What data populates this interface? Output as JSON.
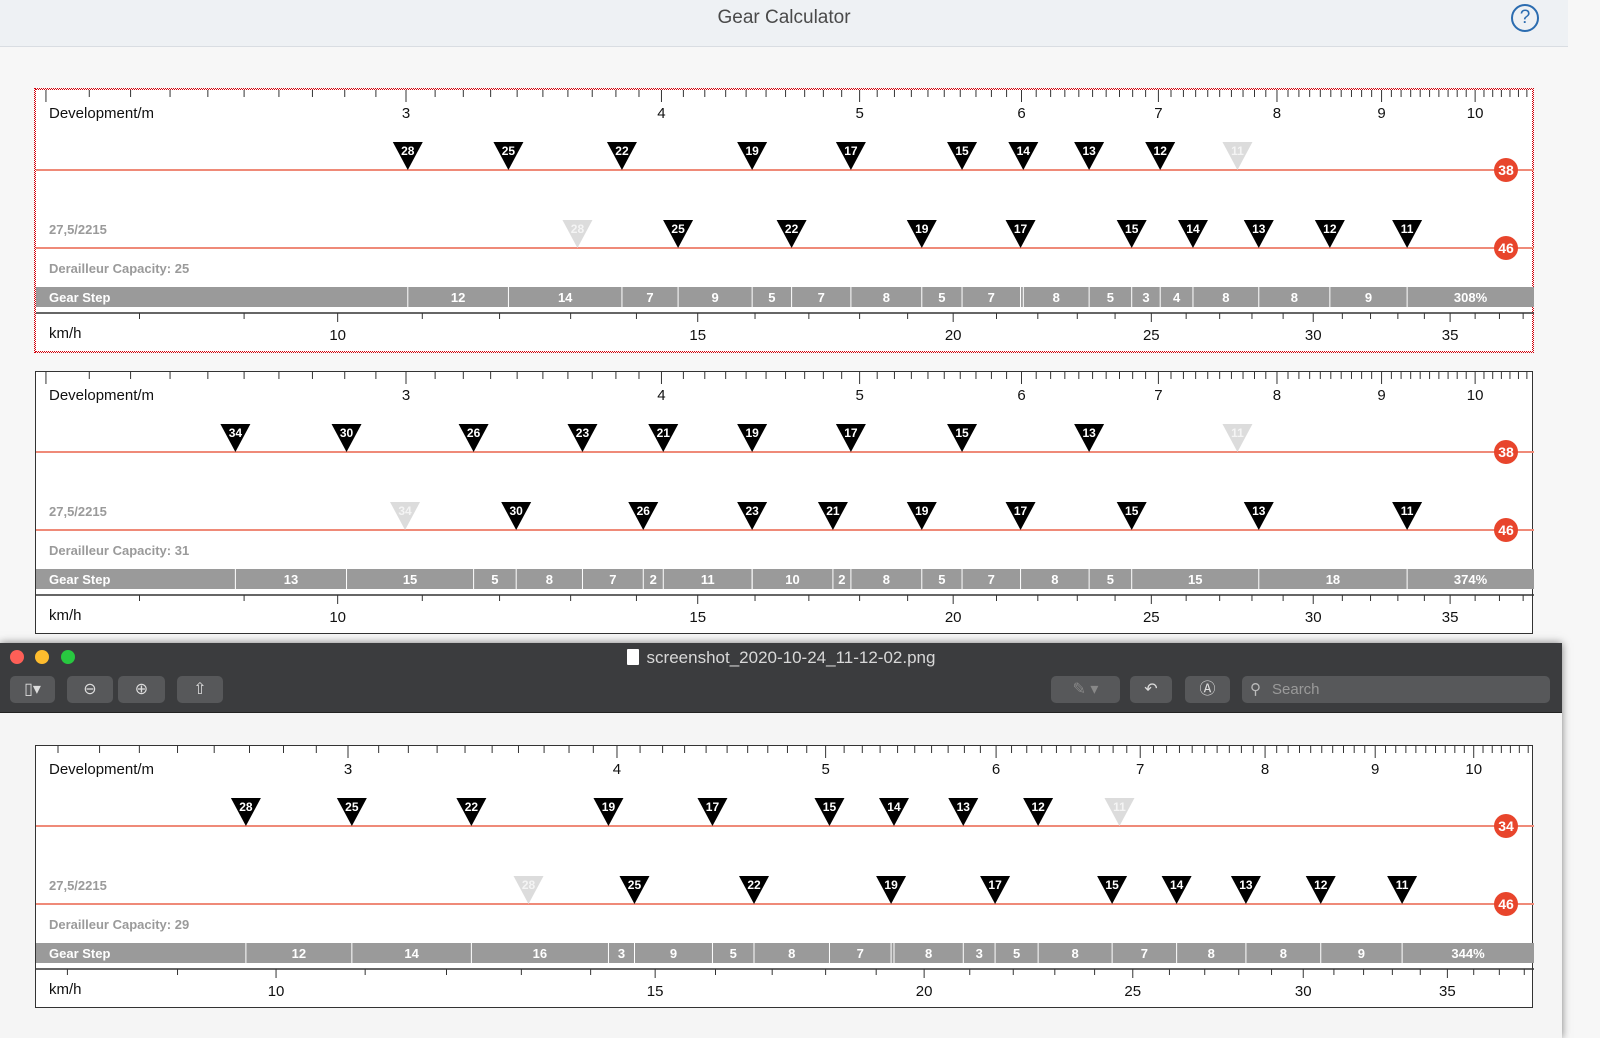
{
  "header": {
    "title": "Gear Calculator",
    "help_icon": "help-circle-icon"
  },
  "labels": {
    "development": "Development/m",
    "speed": "km/h",
    "gear_step": "Gear Step",
    "capacity_prefix": "Derailleur Capacity: "
  },
  "colors": {
    "chainring_line": "#ef8a78",
    "chainring_badge": "#e8452c",
    "marker_active": "#000000",
    "marker_disabled": "#dcdcdc",
    "gear_step_bar": "#9a9a9a",
    "help": "#2b6cb0"
  },
  "panels": [
    {
      "selected": true,
      "wheel": "27,5/2215",
      "circumference_m": 2.215,
      "capacity": 25,
      "rows": [
        {
          "chainring": 38,
          "cogs": [
            28,
            25,
            22,
            19,
            17,
            15,
            14,
            13,
            12,
            11
          ],
          "disabled": [
            11
          ]
        },
        {
          "chainring": 46,
          "cogs": [
            28,
            25,
            22,
            19,
            17,
            15,
            14,
            13,
            12,
            11
          ],
          "disabled": [
            28
          ]
        }
      ],
      "steps": [
        "12",
        "14",
        "7",
        "9",
        "5",
        "7",
        "8",
        "5",
        "7",
        "",
        "8",
        "5",
        "3",
        "4",
        "8",
        "8",
        "9"
      ],
      "range": "308%"
    },
    {
      "selected": false,
      "wheel": "27,5/2215",
      "circumference_m": 2.215,
      "capacity": 31,
      "rows": [
        {
          "chainring": 38,
          "cogs": [
            34,
            30,
            26,
            23,
            21,
            19,
            17,
            15,
            13,
            11
          ],
          "disabled": [
            11
          ]
        },
        {
          "chainring": 46,
          "cogs": [
            34,
            30,
            26,
            23,
            21,
            19,
            17,
            15,
            13,
            11
          ],
          "disabled": [
            34
          ]
        }
      ],
      "steps": [
        "13",
        "15",
        "5",
        "8",
        "7",
        "2",
        "11",
        "",
        "10",
        "2",
        "8",
        "5",
        "7",
        "8",
        "5",
        "15",
        "18"
      ],
      "range": "374%"
    },
    {
      "selected": false,
      "wheel": "27,5/2215",
      "circumference_m": 2.215,
      "capacity": 29,
      "rows": [
        {
          "chainring": 34,
          "cogs": [
            28,
            25,
            22,
            19,
            17,
            15,
            14,
            13,
            12,
            11
          ],
          "disabled": [
            11
          ]
        },
        {
          "chainring": 46,
          "cogs": [
            28,
            25,
            22,
            19,
            17,
            15,
            14,
            13,
            12,
            11
          ],
          "disabled": [
            28
          ]
        }
      ],
      "steps": [
        "12",
        "14",
        "16",
        "3",
        "9",
        "5",
        "8",
        "7",
        "",
        "8",
        "3",
        "5",
        "8",
        "7",
        "8",
        "8",
        "9"
      ],
      "range": "344%"
    }
  ],
  "dev_ticks": [
    3,
    4,
    5,
    6,
    7,
    8,
    9,
    10
  ],
  "speed_ticks": [
    10,
    15,
    20,
    25,
    30,
    35
  ],
  "viewer": {
    "filename": "screenshot_2020-10-24_11-12-02.png",
    "search_placeholder": "Search",
    "buttons": [
      {
        "name": "sidebar",
        "icon": "sidebar-icon"
      },
      {
        "name": "zoom-out",
        "icon": "zoom-out-icon"
      },
      {
        "name": "zoom-in",
        "icon": "zoom-in-icon"
      },
      {
        "name": "share",
        "icon": "share-icon"
      },
      {
        "name": "markup",
        "icon": "pen-icon"
      },
      {
        "name": "rotate",
        "icon": "rotate-icon"
      },
      {
        "name": "annotate",
        "icon": "annotate-icon"
      }
    ]
  }
}
